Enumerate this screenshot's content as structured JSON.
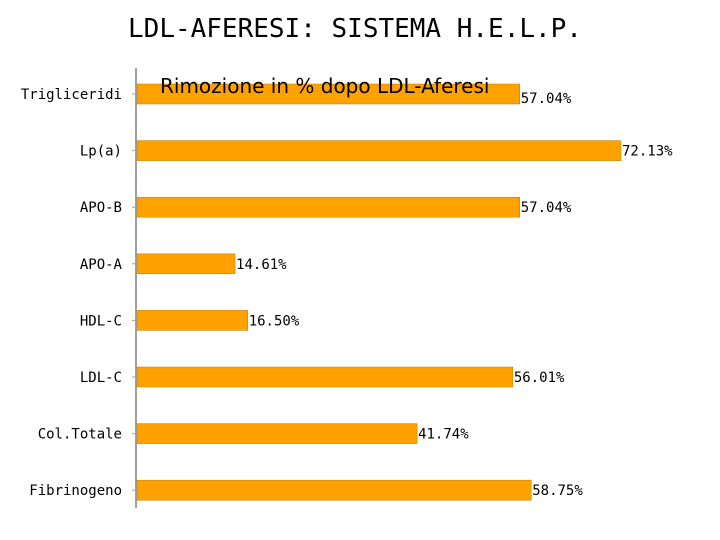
{
  "page": {
    "title": "LDL-AFERESI: SISTEMA H.E.L.P."
  },
  "chart_data": {
    "type": "bar",
    "orientation": "horizontal",
    "title": "Rimozione in % dopo LDL-Aferesi",
    "categories": [
      "Trigliceridi",
      "Lp(a)",
      "APO-B",
      "APO-A",
      "HDL-C",
      "LDL-C",
      "Col.Totale",
      "Fibrinogeno"
    ],
    "values": [
      57.04,
      72.13,
      57.04,
      14.61,
      16.5,
      56.01,
      41.74,
      58.75
    ],
    "value_labels": [
      "57.04%",
      "72.13%",
      "57.04%",
      "14.61%",
      "16.50%",
      "56.01%",
      "41.74%",
      "58.75%"
    ],
    "xlim": [
      0,
      75
    ],
    "grid": false,
    "bar_color": "#FFA200",
    "bar_edge_color": "#C07A00",
    "axis_color": "#A0A0A0"
  }
}
